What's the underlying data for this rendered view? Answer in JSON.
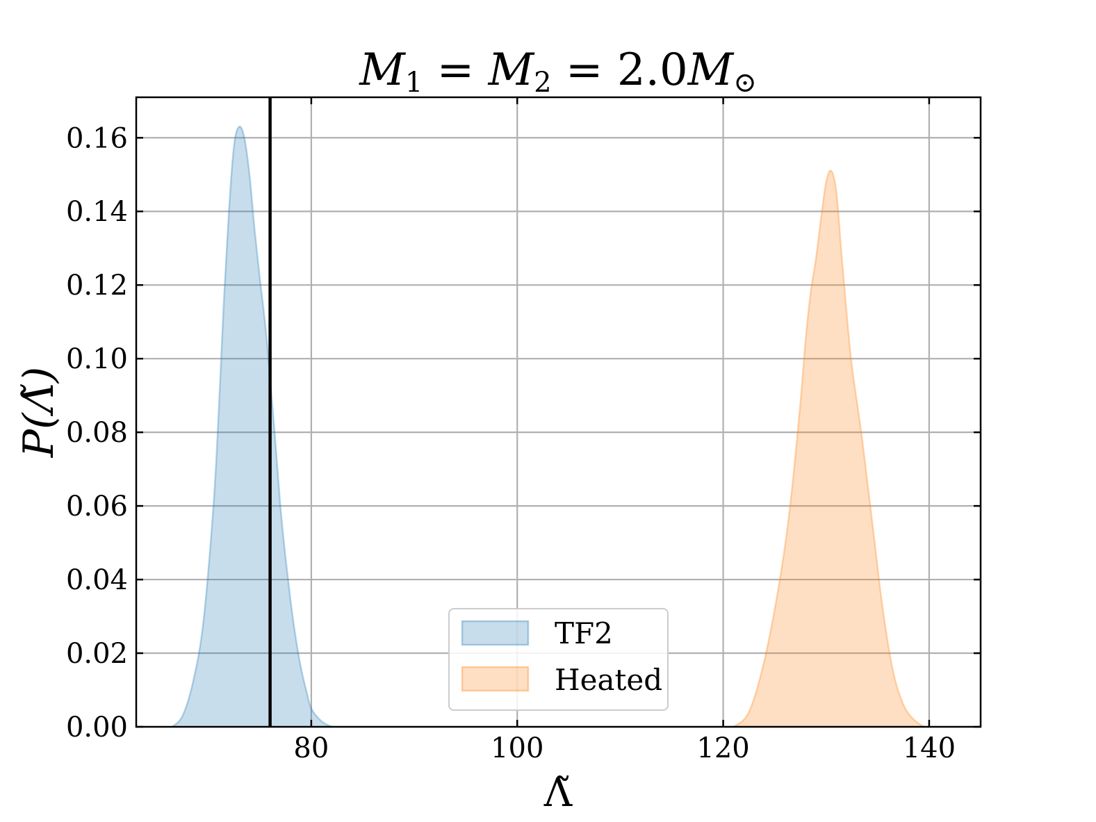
{
  "chart_data": {
    "type": "area",
    "title": {
      "m1": "M",
      "sub1": "1",
      "eq1": " = ",
      "m2": "M",
      "sub2": "2",
      "eq2": " = ",
      "val": "2.0",
      "msun": "M",
      "sun": "⊙"
    },
    "xlabel": "Λ̃",
    "ylabel": "P(Λ̃)",
    "xlim": [
      63,
      145
    ],
    "ylim": [
      0,
      0.171
    ],
    "xticks": [
      80,
      100,
      120,
      140
    ],
    "xtick_labels": [
      "80",
      "100",
      "120",
      "140"
    ],
    "yticks": [
      0,
      0.02,
      0.04,
      0.06,
      0.08,
      0.1,
      0.12,
      0.14,
      0.16
    ],
    "ytick_labels": [
      "0.00",
      "0.02",
      "0.04",
      "0.06",
      "0.08",
      "0.10",
      "0.12",
      "0.14",
      "0.16"
    ],
    "grid": true,
    "vline": {
      "x": 76.0,
      "color": "#000000"
    },
    "legend": {
      "placement": "lower-center"
    },
    "series": [
      {
        "name": "TF2",
        "color": "#1f77b4",
        "x": [
          66.5,
          67.5,
          68.5,
          69.5,
          70.5,
          71.0,
          71.5,
          72.0,
          72.5,
          73.0,
          73.5,
          74.0,
          74.5,
          75.0,
          75.5,
          76.0,
          76.5,
          77.0,
          77.5,
          78.0,
          78.5,
          79.0,
          79.5,
          80.0,
          81.0,
          82.0
        ],
        "y": [
          0.0,
          0.003,
          0.012,
          0.028,
          0.06,
          0.085,
          0.115,
          0.14,
          0.158,
          0.163,
          0.16,
          0.15,
          0.135,
          0.122,
          0.11,
          0.095,
          0.078,
          0.06,
          0.046,
          0.034,
          0.024,
          0.016,
          0.01,
          0.005,
          0.0015,
          0.0
        ]
      },
      {
        "name": "Heated",
        "color": "#ff7f0e",
        "x": [
          121.0,
          122.5,
          124.0,
          125.5,
          126.5,
          127.5,
          128.0,
          128.5,
          129.0,
          129.5,
          130.0,
          130.5,
          131.0,
          131.5,
          132.0,
          132.5,
          133.5,
          134.5,
          135.5,
          136.5,
          137.5,
          138.5,
          139.5
        ],
        "y": [
          0.0,
          0.004,
          0.018,
          0.04,
          0.06,
          0.088,
          0.105,
          0.118,
          0.127,
          0.138,
          0.148,
          0.151,
          0.145,
          0.128,
          0.112,
          0.098,
          0.078,
          0.055,
          0.032,
          0.015,
          0.006,
          0.002,
          0.0
        ]
      }
    ]
  }
}
